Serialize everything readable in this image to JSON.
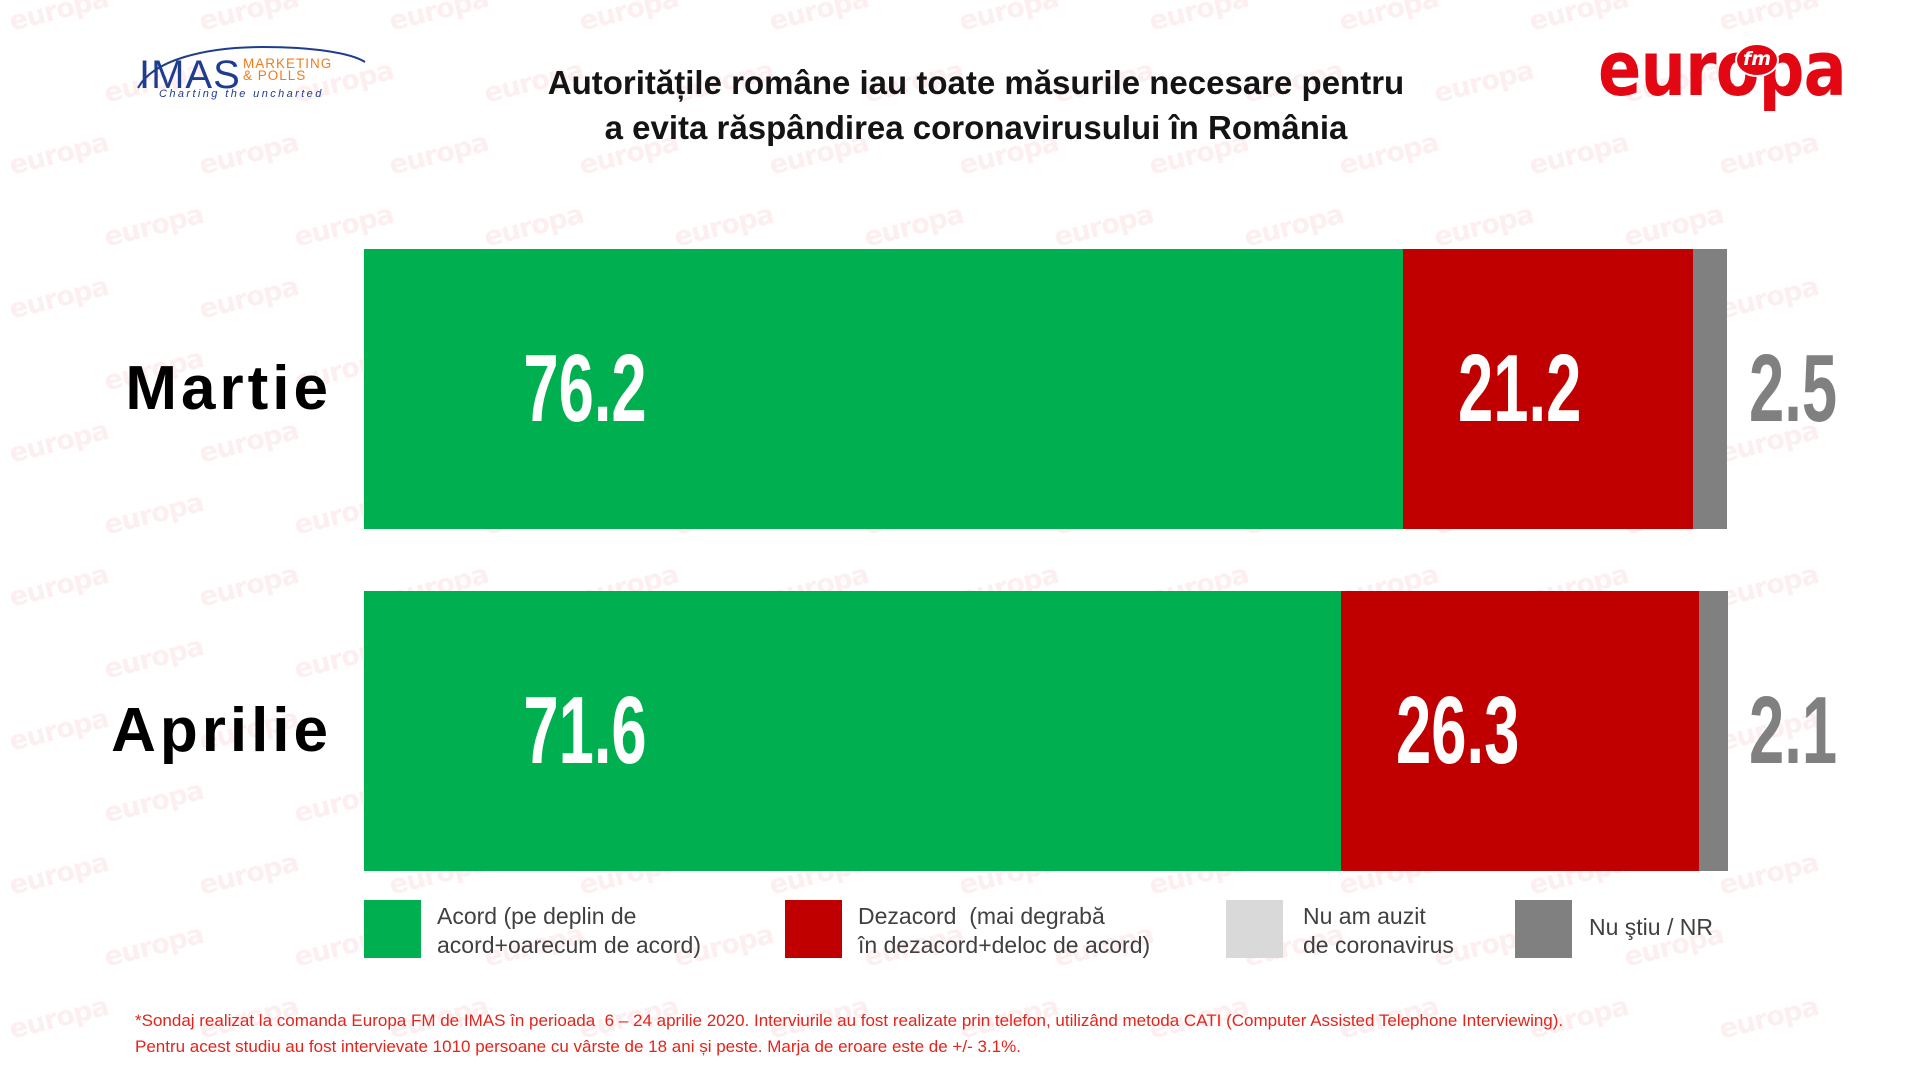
{
  "logos": {
    "imas": {
      "wordmark": "IMAS",
      "line1": "MARKETING",
      "line2": "& POLLS",
      "tagline": "Charting the uncharted"
    },
    "europa_fm": {
      "wordmark": "europa",
      "badge": "fm",
      "registered": "®"
    }
  },
  "watermark": "europa",
  "chart_data": {
    "type": "bar",
    "orientation": "horizontal",
    "stacked": true,
    "title": "Autoritățile române iau toate măsurile necesare pentru\na evita răspândirea coronavirusului în România",
    "categories": [
      "Martie",
      "Aprilie"
    ],
    "series": [
      {
        "name": "Acord (pe deplin de\nacord+oarecum de acord)",
        "color": "#00b050",
        "values": [
          76.2,
          71.6
        ]
      },
      {
        "name": "Dezacord  (mai degrabă\nîn dezacord+deloc de acord)",
        "color": "#c00000",
        "values": [
          21.2,
          26.3
        ]
      },
      {
        "name": "Nu am auzit\nde coronavirus",
        "color": "#d9d9d9",
        "values": [
          0,
          0
        ]
      },
      {
        "name": "Nu ştiu / NR",
        "color": "#808080",
        "values": [
          2.5,
          2.1
        ]
      }
    ],
    "xlim": [
      0,
      100
    ],
    "grid": false,
    "legend_position": "bottom"
  },
  "footnote": [
    "*Sondaj realizat la comanda Europa FM de IMAS în perioada  6 – 24 aprilie 2020. Interviurile au fost realizate prin telefon, utilizând metoda CATI (Computer Assisted Telephone Interviewing).",
    "Pentru acest studiu au fost intervievate 1010 persoane cu vârste de 18 ani și peste. Marja de eroare este de +/- 3.1%."
  ],
  "theme": {
    "background": "#ffffff",
    "title": "#141414",
    "category_label": "#000000",
    "data_label_inside": "#ffffff",
    "data_label_outside": "#808080",
    "legend_text": "#404040",
    "footnote": "#e3241b",
    "brand_red": "#e30613",
    "imas_blue": "#1f3d8f",
    "imas_orange": "#f07d1a",
    "watermark": "#e30613"
  }
}
